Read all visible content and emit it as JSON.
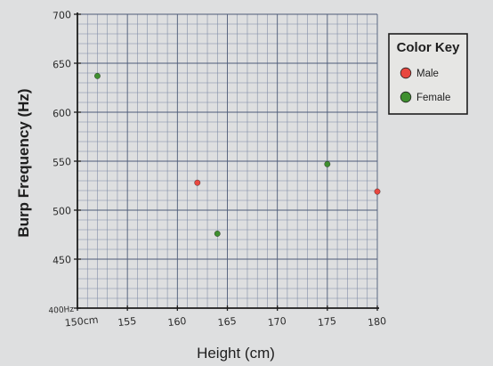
{
  "chart_data": {
    "type": "scatter",
    "xlabel": "Height (cm)",
    "ylabel": "Burp Frequency (Hz)",
    "xlim": [
      150,
      180
    ],
    "ylim": [
      400,
      700
    ],
    "x_ticks": [
      {
        "value": 150,
        "label": "150cm"
      },
      {
        "value": 155,
        "label": "155"
      },
      {
        "value": 160,
        "label": "160"
      },
      {
        "value": 165,
        "label": "165"
      },
      {
        "value": 170,
        "label": "170"
      },
      {
        "value": 175,
        "label": "175"
      },
      {
        "value": 180,
        "label": "180"
      }
    ],
    "y_ticks": [
      {
        "value": 400,
        "label": "400Hz"
      },
      {
        "value": 450,
        "label": "450"
      },
      {
        "value": 500,
        "label": "500"
      },
      {
        "value": 550,
        "label": "550"
      },
      {
        "value": 600,
        "label": "600"
      },
      {
        "value": 650,
        "label": "650"
      },
      {
        "value": 700,
        "label": "700"
      }
    ],
    "grid": true,
    "legend": {
      "title": "Color Key",
      "placement": "top-right"
    },
    "series": [
      {
        "name": "Male",
        "color": "#e8473f",
        "points": [
          {
            "x": 162,
            "y": 528
          },
          {
            "x": 180,
            "y": 519
          }
        ]
      },
      {
        "name": "Female",
        "color": "#3f8f2f",
        "points": [
          {
            "x": 152,
            "y": 637
          },
          {
            "x": 164,
            "y": 476
          },
          {
            "x": 175,
            "y": 547
          }
        ]
      }
    ]
  }
}
